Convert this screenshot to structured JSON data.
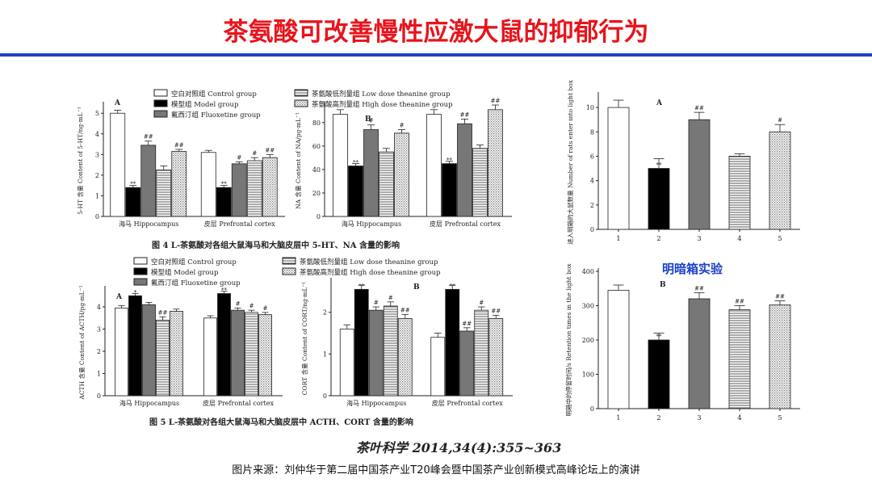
{
  "slide": {
    "title": "茶氨酸可改善慢性应激大鼠的抑郁行为",
    "lightdark_label": "明暗箱实验",
    "citation": "茶叶科学 2014,34(4):355~363",
    "source": "图片来源：刘仲华于第二届中国茶产业T20峰会暨中国茶产业创新模式高峰论坛上的演讲",
    "fig4_caption": "图 4 L-茶氨酸对各组大鼠海马和大脑皮层中 5-HT、NA 含量的影响",
    "fig5_caption": "图 5 L-茶氨酸对各组大鼠海马和大脑皮层中 ACTH、CORT 含量的影响"
  },
  "legend": {
    "control": "空白对照组  Control group",
    "model": "模型组  Model group",
    "fluoxetine": "氟西汀组  Fluoxetine group",
    "low": "茶氨酸低剂量组  Low dose theanine group",
    "high": "茶氨酸高剂量组  High dose theanine group"
  },
  "chart_data": [
    {
      "type": "bar",
      "panel": "A",
      "ylabel": "5-HT 含量  Content of 5-HT/ng·mL⁻¹",
      "categories": [
        "海马  Hippocampus",
        "皮层  Prefrontal cortex"
      ],
      "ylim": [
        0,
        5.4
      ],
      "yticks": [
        0,
        1,
        2,
        3,
        4,
        5
      ],
      "series": [
        {
          "name": "空白对照组  Control group",
          "values": [
            5.0,
            3.1
          ],
          "err": [
            0.15,
            0.1
          ],
          "marks": [
            "",
            ""
          ]
        },
        {
          "name": "模型组  Model group",
          "values": [
            1.4,
            1.4
          ],
          "err": [
            0.1,
            0.1
          ],
          "marks": [
            "**",
            "**"
          ]
        },
        {
          "name": "氟西汀组  Fluoxetine group",
          "values": [
            3.45,
            2.55
          ],
          "err": [
            0.2,
            0.1
          ],
          "marks": [
            "##",
            "#"
          ]
        },
        {
          "name": "茶氨酸低剂量组  Low dose theanine group",
          "values": [
            2.25,
            2.7
          ],
          "err": [
            0.2,
            0.15
          ],
          "marks": [
            "",
            "#"
          ]
        },
        {
          "name": "茶氨酸高剂量组  High dose theanine group",
          "values": [
            3.15,
            2.85
          ],
          "err": [
            0.1,
            0.15
          ],
          "marks": [
            "##",
            "##"
          ]
        }
      ]
    },
    {
      "type": "bar",
      "panel": "B",
      "ylabel": "NA 含量  Content of NA/pg·mL⁻¹",
      "categories": [
        "海马  Hippocampus",
        "皮层  Prefrontal cortex"
      ],
      "ylim": [
        0,
        95
      ],
      "yticks": [
        0,
        20,
        40,
        60,
        80
      ],
      "series": [
        {
          "name": "空白对照组  Control group",
          "values": [
            87,
            87
          ],
          "err": [
            4,
            4
          ],
          "marks": [
            "",
            ""
          ]
        },
        {
          "name": "模型组  Model group",
          "values": [
            43,
            45
          ],
          "err": [
            2,
            2
          ],
          "marks": [
            "**",
            "**"
          ]
        },
        {
          "name": "氟西汀组  Fluoxetine group",
          "values": [
            74,
            79
          ],
          "err": [
            4,
            4
          ],
          "marks": [
            "#",
            "##"
          ]
        },
        {
          "name": "茶氨酸低剂量组  Low dose theanine group",
          "values": [
            55,
            58
          ],
          "err": [
            3,
            3
          ],
          "marks": [
            "",
            ""
          ]
        },
        {
          "name": "茶氨酸高剂量组  High dose theanine group",
          "values": [
            71,
            91
          ],
          "err": [
            3,
            4
          ],
          "marks": [
            "#",
            "##"
          ]
        }
      ]
    },
    {
      "type": "bar",
      "panel": "A",
      "ylabel": "进入明箱的大鼠数量  Number of rats enter into light box",
      "categories": [
        "1",
        "2",
        "3",
        "4",
        "5"
      ],
      "ylim": [
        0,
        11
      ],
      "yticks": [
        0,
        2,
        4,
        6,
        8,
        10
      ],
      "values": [
        10,
        5,
        9,
        6,
        8
      ],
      "err": [
        0.6,
        0.8,
        0.6,
        0.2,
        0.6
      ],
      "marks": [
        "",
        "**",
        "##",
        "",
        "#"
      ]
    },
    {
      "type": "bar",
      "panel": "A",
      "ylabel": "ACTH 含量  Content of ACTH/pg·mL⁻¹",
      "categories": [
        "海马  Hippocampus",
        "皮层  Prefrontal cortex"
      ],
      "ylim": [
        0,
        4.8
      ],
      "yticks": [
        0,
        1,
        2,
        3,
        4
      ],
      "series": [
        {
          "name": "空白对照组  Control group",
          "values": [
            3.95,
            3.5
          ],
          "err": [
            0.1,
            0.1
          ],
          "marks": [
            "",
            ""
          ]
        },
        {
          "name": "模型组  Model group",
          "values": [
            4.5,
            4.6
          ],
          "err": [
            0.1,
            0.1
          ],
          "marks": [
            "*",
            "**"
          ]
        },
        {
          "name": "氟西汀组  Fluoxetine group",
          "values": [
            4.1,
            3.85
          ],
          "err": [
            0.1,
            0.1
          ],
          "marks": [
            "",
            "#"
          ]
        },
        {
          "name": "茶氨酸低剂量组  Low dose theanine group",
          "values": [
            3.4,
            3.75
          ],
          "err": [
            0.15,
            0.1
          ],
          "marks": [
            "##",
            "#"
          ]
        },
        {
          "name": "茶氨酸高剂量组  High dose theanine group",
          "values": [
            3.8,
            3.65
          ],
          "err": [
            0.1,
            0.1
          ],
          "marks": [
            "",
            "#"
          ]
        }
      ]
    },
    {
      "type": "bar",
      "panel": "B",
      "ylabel": "CORT 含量  Content of CORT/ng·mL⁻¹",
      "categories": [
        "海马  Hippocampus",
        "皮层  Prefrontal cortex"
      ],
      "ylim": [
        0,
        2.75
      ],
      "yticks": [
        0,
        1,
        2
      ],
      "series": [
        {
          "name": "空白对照组  Control group",
          "values": [
            1.6,
            1.4
          ],
          "err": [
            0.1,
            0.1
          ],
          "marks": [
            "",
            ""
          ]
        },
        {
          "name": "模型组  Model group",
          "values": [
            2.55,
            2.55
          ],
          "err": [
            0.1,
            0.1
          ],
          "marks": [
            "**",
            "**"
          ]
        },
        {
          "name": "氟西汀组  Fluoxetine group",
          "values": [
            2.05,
            1.55
          ],
          "err": [
            0.08,
            0.08
          ],
          "marks": [
            "#",
            "##"
          ]
        },
        {
          "name": "茶氨酸低剂量组  Low dose theanine group",
          "values": [
            2.15,
            2.05
          ],
          "err": [
            0.1,
            0.08
          ],
          "marks": [
            "#",
            "#"
          ]
        },
        {
          "name": "茶氨酸高剂量组  High dose theanine group",
          "values": [
            1.85,
            1.85
          ],
          "err": [
            0.1,
            0.08
          ],
          "marks": [
            "##",
            "##"
          ]
        }
      ]
    },
    {
      "type": "bar",
      "panel": "B",
      "ylabel": "明箱中的停留时间/s  Retention times in the light box",
      "categories": [
        "1",
        "2",
        "3",
        "4",
        "5"
      ],
      "ylim": [
        0,
        400
      ],
      "yticks": [
        0,
        100,
        200,
        300,
        400
      ],
      "values": [
        345,
        200,
        320,
        288,
        302
      ],
      "err": [
        15,
        20,
        18,
        12,
        12
      ],
      "marks": [
        "",
        "**",
        "##",
        "##",
        "##"
      ]
    }
  ]
}
